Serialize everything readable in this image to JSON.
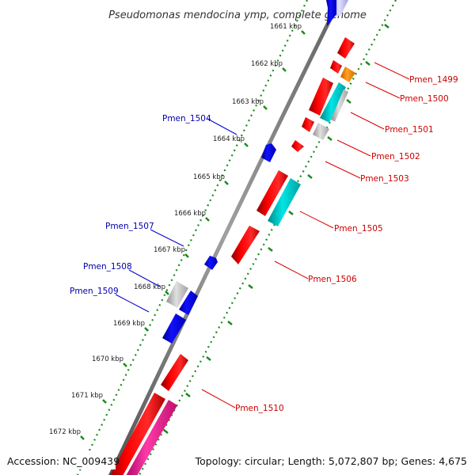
{
  "title": "Pseudomonas mendocina ymp, complete genome",
  "footer": {
    "accession": "Accession: NC_009439",
    "summary": "Topology: circular; Length: 5,072,807 bp; Genes: 4,675"
  },
  "ticks": [
    {
      "label": "1661 kbp",
      "kbp": 1661
    },
    {
      "label": "1662 kbp",
      "kbp": 1662
    },
    {
      "label": "1663 kbp",
      "kbp": 1663
    },
    {
      "label": "1664 kbp",
      "kbp": 1664
    },
    {
      "label": "1665 kbp",
      "kbp": 1665
    },
    {
      "label": "1666 kbp",
      "kbp": 1666
    },
    {
      "label": "1667 kbp",
      "kbp": 1667
    },
    {
      "label": "1668 kbp",
      "kbp": 1668
    },
    {
      "label": "1669 kbp",
      "kbp": 1669
    },
    {
      "label": "1670 kbp",
      "kbp": 1670
    },
    {
      "label": "1671 kbp",
      "kbp": 1671
    },
    {
      "label": "1672 kbp",
      "kbp": 1672
    }
  ],
  "gene_labels": {
    "right": [
      "Pmen_1499",
      "Pmen_1500",
      "Pmen_1501",
      "Pmen_1502",
      "Pmen_1503",
      "Pmen_1505",
      "Pmen_1506",
      "Pmen_1510"
    ],
    "left": [
      "Pmen_1504",
      "Pmen_1507",
      "Pmen_1508",
      "Pmen_1509"
    ]
  },
  "colors": {
    "forward_gene": "#ff0000",
    "reverse_gene": "#0000ff",
    "other_gene": "#b0b0b0",
    "cyan_gene": "#00d0d0",
    "orange_gene": "#ff8c00",
    "pink_gene": "#ff1493",
    "backbone": "#808080",
    "tick_dots": "#1a8a1a",
    "right_label": "#cc0000",
    "left_label": "#0000aa"
  }
}
